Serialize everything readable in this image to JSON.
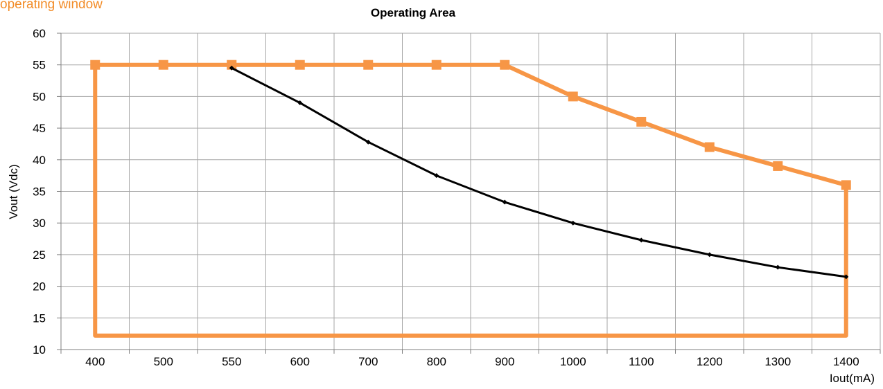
{
  "corner_note": "operating window",
  "colors": {
    "envelope": "#f79646",
    "curve": "#000000",
    "grid": "#a6a6a6",
    "corner_note": "#f28c28"
  },
  "chart_data": {
    "type": "line",
    "title": "Operating Area",
    "xlabel": "Iout(mA)",
    "ylabel": "Vout (Vdc)",
    "categories": [
      "400",
      "500",
      "550",
      "600",
      "700",
      "800",
      "900",
      "1000",
      "1100",
      "1200",
      "1300",
      "1400"
    ],
    "ylim": [
      10,
      60
    ],
    "yticks": [
      10,
      15,
      20,
      25,
      30,
      35,
      40,
      45,
      50,
      55,
      60
    ],
    "grid": true,
    "series": [
      {
        "values": [
          55,
          55,
          55,
          55,
          55,
          55,
          55,
          50,
          46,
          42,
          39,
          36
        ],
        "closed_to_floor": 12.2,
        "marker": "square",
        "color": "#f79646"
      },
      {
        "values": [
          null,
          null,
          54.5,
          49,
          42.8,
          37.5,
          33.3,
          30,
          27.3,
          25,
          23,
          21.5
        ],
        "marker": "diamond",
        "color": "#000000"
      }
    ]
  }
}
